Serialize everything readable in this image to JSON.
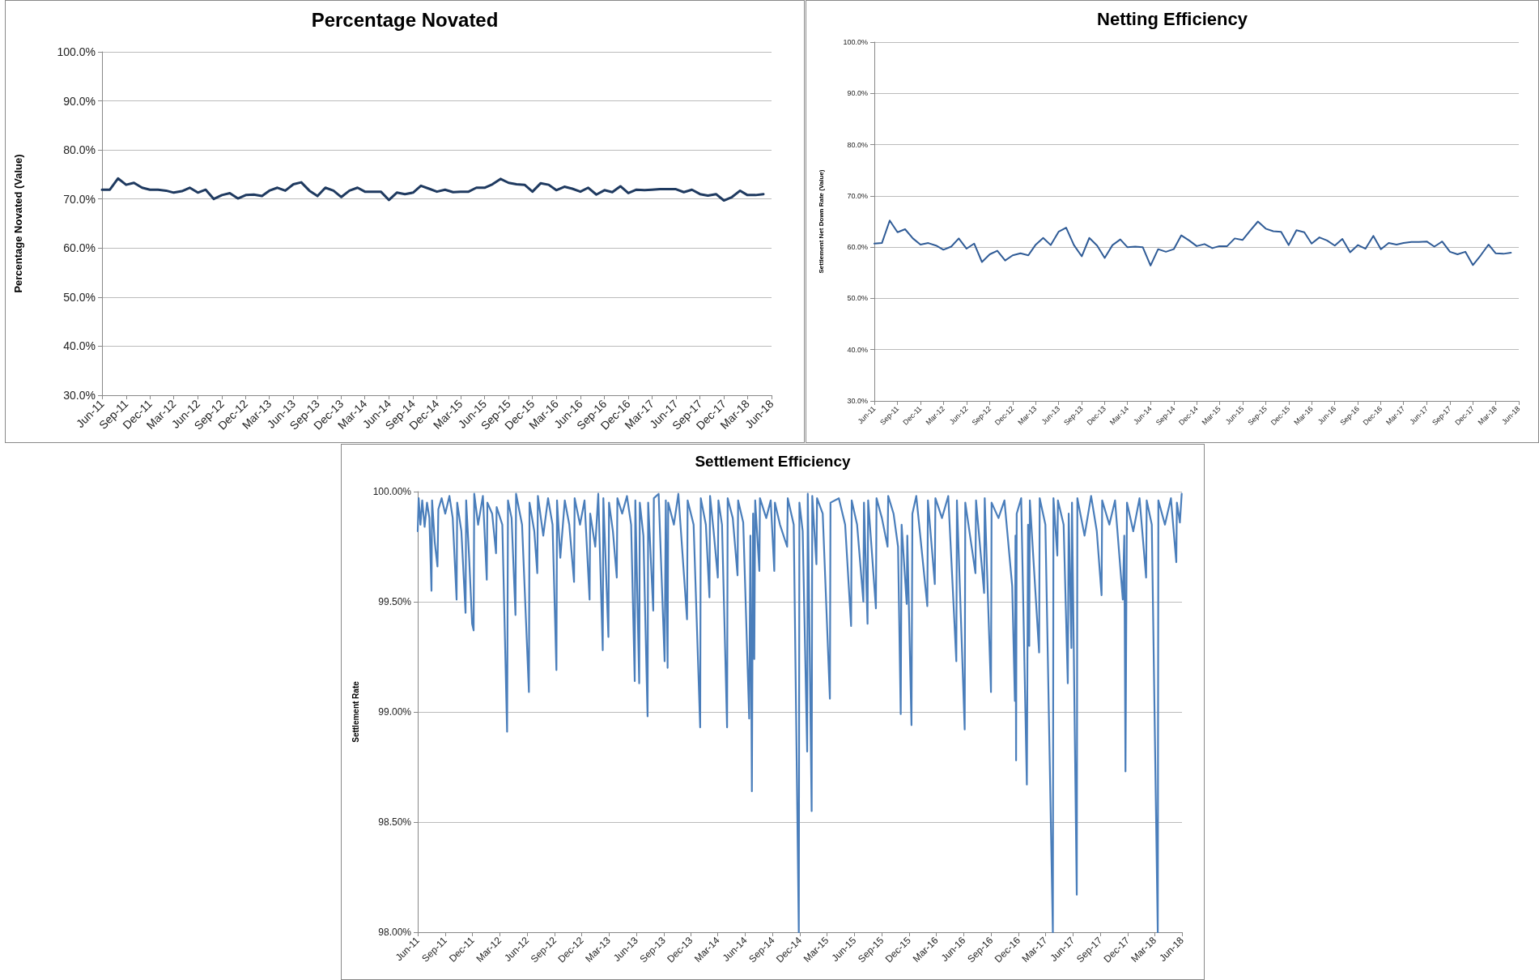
{
  "chart_data": [
    {
      "type": "line",
      "title": "Percentage Novated",
      "ylabel": "Percentage Novated (Value)",
      "color": "#1f3a60",
      "grid": "y",
      "x": [
        "2011-06",
        "2011-07",
        "2011-08",
        "2011-09",
        "2011-10",
        "2011-11",
        "2011-12",
        "2012-01",
        "2012-02",
        "2012-03",
        "2012-04",
        "2012-05",
        "2012-06",
        "2012-07",
        "2012-08",
        "2012-09",
        "2012-10",
        "2012-11",
        "2012-12",
        "2013-01",
        "2013-02",
        "2013-03",
        "2013-04",
        "2013-05",
        "2013-06",
        "2013-07",
        "2013-08",
        "2013-09",
        "2013-10",
        "2013-11",
        "2013-12",
        "2014-01",
        "2014-02",
        "2014-03",
        "2014-04",
        "2014-05",
        "2014-06",
        "2014-07",
        "2014-08",
        "2014-09",
        "2014-10",
        "2014-11",
        "2014-12",
        "2015-01",
        "2015-02",
        "2015-03",
        "2015-04",
        "2015-05",
        "2015-06",
        "2015-07",
        "2015-08",
        "2015-09",
        "2015-10",
        "2015-11",
        "2015-12",
        "2016-01",
        "2016-02",
        "2016-03",
        "2016-04",
        "2016-05",
        "2016-06",
        "2016-07",
        "2016-08",
        "2016-09",
        "2016-10",
        "2016-11",
        "2016-12",
        "2017-01",
        "2017-02",
        "2017-03",
        "2017-04",
        "2017-05",
        "2017-06",
        "2017-07",
        "2017-08",
        "2017-09",
        "2017-10",
        "2017-11",
        "2017-12",
        "2018-01",
        "2018-02",
        "2018-03",
        "2018-04",
        "2018-05"
      ],
      "values": [
        71.9,
        71.9,
        74.2,
        72.9,
        73.3,
        72.3,
        71.9,
        71.9,
        71.7,
        71.3,
        71.6,
        72.3,
        71.3,
        71.9,
        70.0,
        70.8,
        71.2,
        70.1,
        70.8,
        70.9,
        70.6,
        71.7,
        72.3,
        71.7,
        73.0,
        73.4,
        71.7,
        70.6,
        72.3,
        71.7,
        70.4,
        71.7,
        72.3,
        71.5,
        71.5,
        71.5,
        69.8,
        71.3,
        71.0,
        71.3,
        72.7,
        72.1,
        71.5,
        71.9,
        71.4,
        71.5,
        71.5,
        72.3,
        72.3,
        73.0,
        74.1,
        73.3,
        73.0,
        72.9,
        71.5,
        73.2,
        72.9,
        71.8,
        72.5,
        72.1,
        71.5,
        72.3,
        70.9,
        71.8,
        71.4,
        72.6,
        71.2,
        71.9,
        71.8,
        71.9,
        72.0,
        72.0,
        72.0,
        71.4,
        71.9,
        71.0,
        70.7,
        71.0,
        69.7,
        70.4,
        71.7,
        70.8,
        70.8,
        71.0
      ],
      "xlim": [
        "2011-06",
        "2018-06"
      ],
      "xticks": [
        {
          "value": "2011-06",
          "label": "Jun-11"
        },
        {
          "value": "2011-09",
          "label": "Sep-11"
        },
        {
          "value": "2011-12",
          "label": "Dec-11"
        },
        {
          "value": "2012-03",
          "label": "Mar-12"
        },
        {
          "value": "2012-06",
          "label": "Jun-12"
        },
        {
          "value": "2012-09",
          "label": "Sep-12"
        },
        {
          "value": "2012-12",
          "label": "Dec-12"
        },
        {
          "value": "2013-03",
          "label": "Mar-13"
        },
        {
          "value": "2013-06",
          "label": "Jun-13"
        },
        {
          "value": "2013-09",
          "label": "Sep-13"
        },
        {
          "value": "2013-12",
          "label": "Dec-13"
        },
        {
          "value": "2014-03",
          "label": "Mar-14"
        },
        {
          "value": "2014-06",
          "label": "Jun-14"
        },
        {
          "value": "2014-09",
          "label": "Sep-14"
        },
        {
          "value": "2014-12",
          "label": "Dec-14"
        },
        {
          "value": "2015-03",
          "label": "Mar-15"
        },
        {
          "value": "2015-06",
          "label": "Jun-15"
        },
        {
          "value": "2015-09",
          "label": "Sep-15"
        },
        {
          "value": "2015-12",
          "label": "Dec-15"
        },
        {
          "value": "2016-03",
          "label": "Mar-16"
        },
        {
          "value": "2016-06",
          "label": "Jun-16"
        },
        {
          "value": "2016-09",
          "label": "Sep-16"
        },
        {
          "value": "2016-12",
          "label": "Dec-16"
        },
        {
          "value": "2017-03",
          "label": "Mar-17"
        },
        {
          "value": "2017-06",
          "label": "Jun-17"
        },
        {
          "value": "2017-09",
          "label": "Sep-17"
        },
        {
          "value": "2017-12",
          "label": "Dec-17"
        },
        {
          "value": "2018-03",
          "label": "Mar-18"
        },
        {
          "value": "2018-06",
          "label": "Jun-18"
        }
      ],
      "ylim": [
        30,
        100
      ],
      "yticks": [
        {
          "value": 30,
          "label": "30.0%"
        },
        {
          "value": 40,
          "label": "40.0%"
        },
        {
          "value": 50,
          "label": "50.0%"
        },
        {
          "value": 60,
          "label": "60.0%"
        },
        {
          "value": 70,
          "label": "70.0%"
        },
        {
          "value": 80,
          "label": "80.0%"
        },
        {
          "value": 90,
          "label": "90.0%"
        },
        {
          "value": 100,
          "label": "100.0%"
        }
      ]
    },
    {
      "type": "line",
      "title": "Netting Efficiency",
      "ylabel": "Settlement Net Down Rate (Value)",
      "color": "#2f5b96",
      "grid": "y",
      "x": [
        "2011-06",
        "2011-07",
        "2011-08",
        "2011-09",
        "2011-10",
        "2011-11",
        "2011-12",
        "2012-01",
        "2012-02",
        "2012-03",
        "2012-04",
        "2012-05",
        "2012-06",
        "2012-07",
        "2012-08",
        "2012-09",
        "2012-10",
        "2012-11",
        "2012-12",
        "2013-01",
        "2013-02",
        "2013-03",
        "2013-04",
        "2013-05",
        "2013-06",
        "2013-07",
        "2013-08",
        "2013-09",
        "2013-10",
        "2013-11",
        "2013-12",
        "2014-01",
        "2014-02",
        "2014-03",
        "2014-04",
        "2014-05",
        "2014-06",
        "2014-07",
        "2014-08",
        "2014-09",
        "2014-10",
        "2014-11",
        "2014-12",
        "2015-01",
        "2015-02",
        "2015-03",
        "2015-04",
        "2015-05",
        "2015-06",
        "2015-07",
        "2015-08",
        "2015-09",
        "2015-10",
        "2015-11",
        "2015-12",
        "2016-01",
        "2016-02",
        "2016-03",
        "2016-04",
        "2016-05",
        "2016-06",
        "2016-07",
        "2016-08",
        "2016-09",
        "2016-10",
        "2016-11",
        "2016-12",
        "2017-01",
        "2017-02",
        "2017-03",
        "2017-04",
        "2017-05",
        "2017-06",
        "2017-07",
        "2017-08",
        "2017-09",
        "2017-10",
        "2017-11",
        "2017-12",
        "2018-01",
        "2018-02",
        "2018-03",
        "2018-04",
        "2018-05"
      ],
      "values": [
        60.7,
        60.8,
        65.2,
        62.9,
        63.5,
        61.7,
        60.5,
        60.8,
        60.3,
        59.5,
        60.1,
        61.7,
        59.7,
        60.7,
        57.1,
        58.6,
        59.3,
        57.4,
        58.4,
        58.8,
        58.4,
        60.4,
        61.8,
        60.4,
        63.0,
        63.8,
        60.4,
        58.2,
        61.8,
        60.3,
        57.9,
        60.4,
        61.5,
        60.0,
        60.1,
        60.0,
        56.4,
        59.6,
        59.1,
        59.6,
        62.3,
        61.3,
        60.2,
        60.6,
        59.8,
        60.2,
        60.2,
        61.7,
        61.4,
        63.2,
        65.0,
        63.6,
        63.1,
        63.0,
        60.4,
        63.3,
        62.9,
        60.7,
        61.9,
        61.3,
        60.3,
        61.6,
        59.0,
        60.4,
        59.7,
        62.2,
        59.6,
        60.8,
        60.5,
        60.8,
        61.0,
        61.0,
        61.1,
        60.1,
        61.1,
        59.1,
        58.6,
        59.1,
        56.5,
        58.4,
        60.5,
        58.8,
        58.7,
        58.9
      ],
      "xlim": [
        "2011-06",
        "2018-06"
      ],
      "xticks": [
        {
          "value": "2011-06",
          "label": "Jun-11"
        },
        {
          "value": "2011-09",
          "label": "Sep-11"
        },
        {
          "value": "2011-12",
          "label": "Dec-11"
        },
        {
          "value": "2012-03",
          "label": "Mar-12"
        },
        {
          "value": "2012-06",
          "label": "Jun-12"
        },
        {
          "value": "2012-09",
          "label": "Sep-12"
        },
        {
          "value": "2012-12",
          "label": "Dec-12"
        },
        {
          "value": "2013-03",
          "label": "Mar-13"
        },
        {
          "value": "2013-06",
          "label": "Jun-13"
        },
        {
          "value": "2013-09",
          "label": "Sep-13"
        },
        {
          "value": "2013-12",
          "label": "Dec-13"
        },
        {
          "value": "2014-03",
          "label": "Mar-14"
        },
        {
          "value": "2014-06",
          "label": "Jun-14"
        },
        {
          "value": "2014-09",
          "label": "Sep-14"
        },
        {
          "value": "2014-12",
          "label": "Dec-14"
        },
        {
          "value": "2015-03",
          "label": "Mar-15"
        },
        {
          "value": "2015-06",
          "label": "Jun-15"
        },
        {
          "value": "2015-09",
          "label": "Sep-15"
        },
        {
          "value": "2015-12",
          "label": "Dec-15"
        },
        {
          "value": "2016-03",
          "label": "Mar-16"
        },
        {
          "value": "2016-06",
          "label": "Jun-16"
        },
        {
          "value": "2016-09",
          "label": "Sep-16"
        },
        {
          "value": "2016-12",
          "label": "Dec-16"
        },
        {
          "value": "2017-03",
          "label": "Mar-17"
        },
        {
          "value": "2017-06",
          "label": "Jun-17"
        },
        {
          "value": "2017-09",
          "label": "Sep-17"
        },
        {
          "value": "2017-12",
          "label": "Dec-17"
        },
        {
          "value": "2018-03",
          "label": "Mar-18"
        },
        {
          "value": "2018-06",
          "label": "Jun-18"
        }
      ],
      "ylim": [
        30,
        100
      ],
      "yticks": [
        {
          "value": 30,
          "label": "30.0%"
        },
        {
          "value": 40,
          "label": "40.0%"
        },
        {
          "value": 50,
          "label": "50.0%"
        },
        {
          "value": 60,
          "label": "60.0%"
        },
        {
          "value": 70,
          "label": "70.0%"
        },
        {
          "value": 80,
          "label": "80.0%"
        },
        {
          "value": 90,
          "label": "90.0%"
        },
        {
          "value": 100,
          "label": "100.0%"
        }
      ]
    },
    {
      "type": "line",
      "title": "Settlement Efficiency",
      "ylabel": "Settlement Rate",
      "color": "#4a7ebb",
      "grid": "y",
      "x": [
        "2011-06-01",
        "2011-06-04",
        "2011-06-10",
        "2011-06-16",
        "2011-06-24",
        "2011-07-02",
        "2011-07-10",
        "2011-07-17",
        "2011-07-19",
        "2011-07-28",
        "2011-08-06",
        "2011-08-09",
        "2011-08-20",
        "2011-09-01",
        "2011-09-15",
        "2011-09-26",
        "2011-10-09",
        "2011-10-11",
        "2011-10-25",
        "2011-11-08",
        "2011-11-10",
        "2011-11-20",
        "2011-11-30",
        "2011-12-05",
        "2011-12-07",
        "2011-12-20",
        "2012-01-05",
        "2012-01-18",
        "2012-01-20",
        "2012-02-05",
        "2012-02-18",
        "2012-02-20",
        "2012-03-10",
        "2012-03-26",
        "2012-03-29",
        "2012-04-10",
        "2012-04-23",
        "2012-04-25",
        "2012-05-15",
        "2012-06-07",
        "2012-06-09",
        "2012-06-25",
        "2012-07-05",
        "2012-07-07",
        "2012-07-25",
        "2012-08-10",
        "2012-08-25",
        "2012-09-07",
        "2012-09-09",
        "2012-09-20",
        "2012-10-05",
        "2012-10-20",
        "2012-11-05",
        "2012-11-07",
        "2012-11-25",
        "2012-12-10",
        "2012-12-27",
        "2012-12-29",
        "2013-01-15",
        "2013-01-25",
        "2013-02-09",
        "2013-02-11",
        "2013-02-28",
        "2013-03-02",
        "2013-03-15",
        "2013-03-28",
        "2013-03-30",
        "2013-04-15",
        "2013-05-01",
        "2013-05-15",
        "2013-05-27",
        "2013-05-29",
        "2013-06-11",
        "2013-06-13",
        "2013-06-25",
        "2013-07-09",
        "2013-07-11",
        "2013-07-28",
        "2013-07-30",
        "2013-08-15",
        "2013-09-04",
        "2013-09-08",
        "2013-09-14",
        "2013-09-16",
        "2013-10-05",
        "2013-10-20",
        "2013-11-18",
        "2013-11-20",
        "2013-12-10",
        "2014-01-01",
        "2014-01-03",
        "2014-01-20",
        "2014-02-01",
        "2014-02-03",
        "2014-02-15",
        "2014-03-01",
        "2014-03-03",
        "2014-03-15",
        "2014-04-01",
        "2014-04-03",
        "2014-04-20",
        "2014-05-06",
        "2014-05-08",
        "2014-05-25",
        "2014-06-14",
        "2014-06-18",
        "2014-06-23",
        "2014-06-27",
        "2014-07-01",
        "2014-07-04",
        "2014-07-18",
        "2014-07-20",
        "2014-08-10",
        "2014-08-25",
        "2014-09-06",
        "2014-09-08",
        "2014-09-25",
        "2014-10-19",
        "2014-10-21",
        "2014-11-10",
        "2014-11-27",
        "2014-11-29",
        "2014-12-10",
        "2014-12-25",
        "2014-12-27",
        "2015-01-09",
        "2015-01-11",
        "2015-01-25",
        "2015-01-27",
        "2015-02-15",
        "2015-03-11",
        "2015-03-13",
        "2015-04-10",
        "2015-05-01",
        "2015-05-21",
        "2015-05-23",
        "2015-06-10",
        "2015-07-01",
        "2015-07-03",
        "2015-07-15",
        "2015-07-17",
        "2015-08-12",
        "2015-08-14",
        "2015-09-01",
        "2015-09-20",
        "2015-09-22",
        "2015-10-10",
        "2015-10-25",
        "2015-11-03",
        "2015-11-06",
        "2015-11-23",
        "2015-11-25",
        "2015-12-09",
        "2015-12-12",
        "2015-12-25",
        "2016-01-31",
        "2016-02-02",
        "2016-02-25",
        "2016-02-27",
        "2016-03-20",
        "2016-04-10",
        "2016-05-07",
        "2016-05-09",
        "2016-06-04",
        "2016-06-06",
        "2016-07-10",
        "2016-07-12",
        "2016-08-08",
        "2016-08-10",
        "2016-08-31",
        "2016-09-02",
        "2016-09-25",
        "2016-10-15",
        "2016-11-10",
        "2016-11-19",
        "2016-11-21",
        "2016-11-23",
        "2016-11-25",
        "2016-12-10",
        "2016-12-29",
        "2017-01-02",
        "2017-01-06",
        "2017-01-08",
        "2017-02-08",
        "2017-02-10",
        "2017-03-01",
        "2017-03-26",
        "2017-03-28",
        "2017-04-10",
        "2017-04-12",
        "2017-05-01",
        "2017-05-15",
        "2017-05-18",
        "2017-05-27",
        "2017-05-29",
        "2017-06-14",
        "2017-06-16",
        "2017-07-10",
        "2017-08-01",
        "2017-08-20",
        "2017-09-05",
        "2017-09-07",
        "2017-10-01",
        "2017-10-20",
        "2017-11-15",
        "2017-11-20",
        "2017-11-24",
        "2017-11-27",
        "2017-11-29",
        "2017-12-20",
        "2018-01-10",
        "2018-02-01",
        "2018-02-03",
        "2018-02-20",
        "2018-03-12",
        "2018-03-14",
        "2018-04-05",
        "2018-04-25",
        "2018-05-13",
        "2018-05-15",
        "2018-05-25",
        "2018-05-31"
      ],
      "values": [
        99.82,
        99.97,
        99.85,
        99.96,
        99.84,
        99.95,
        99.88,
        99.55,
        99.96,
        99.77,
        99.66,
        99.92,
        99.97,
        99.9,
        99.98,
        99.88,
        99.51,
        99.95,
        99.82,
        99.45,
        99.96,
        99.7,
        99.4,
        99.37,
        99.99,
        99.85,
        99.98,
        99.6,
        99.95,
        99.9,
        99.72,
        99.93,
        99.85,
        98.91,
        99.96,
        99.88,
        99.44,
        99.99,
        99.85,
        99.09,
        99.95,
        99.82,
        99.63,
        99.98,
        99.8,
        99.97,
        99.85,
        99.19,
        99.96,
        99.7,
        99.96,
        99.85,
        99.59,
        99.97,
        99.85,
        99.96,
        99.51,
        99.9,
        99.75,
        99.99,
        99.28,
        99.97,
        99.34,
        99.95,
        99.82,
        99.61,
        99.97,
        99.9,
        99.98,
        99.85,
        99.14,
        99.96,
        99.13,
        99.95,
        99.8,
        98.98,
        99.95,
        99.46,
        99.97,
        99.99,
        99.23,
        99.96,
        99.2,
        99.95,
        99.85,
        99.99,
        99.42,
        99.96,
        99.85,
        98.93,
        99.97,
        99.85,
        99.52,
        99.98,
        99.82,
        99.61,
        99.96,
        99.85,
        98.93,
        99.97,
        99.88,
        99.62,
        99.96,
        99.86,
        98.97,
        99.8,
        98.64,
        99.9,
        99.24,
        99.96,
        99.64,
        99.97,
        99.88,
        99.96,
        99.64,
        99.95,
        99.85,
        99.75,
        99.97,
        99.85,
        98.0,
        99.95,
        99.82,
        98.82,
        99.99,
        98.55,
        99.98,
        99.67,
        99.97,
        99.9,
        99.06,
        99.95,
        99.97,
        99.85,
        99.39,
        99.96,
        99.85,
        99.5,
        99.95,
        99.4,
        99.96,
        99.47,
        99.97,
        99.88,
        99.75,
        99.98,
        99.9,
        99.75,
        98.99,
        99.85,
        99.49,
        99.8,
        98.94,
        99.9,
        99.98,
        99.48,
        99.96,
        99.58,
        99.97,
        99.88,
        99.98,
        99.23,
        99.96,
        98.92,
        99.95,
        99.63,
        99.96,
        99.54,
        99.97,
        99.09,
        99.95,
        99.88,
        99.96,
        99.57,
        99.05,
        99.8,
        98.78,
        99.9,
        99.97,
        98.67,
        99.85,
        99.3,
        99.96,
        99.27,
        99.97,
        99.85,
        98.0,
        99.97,
        99.71,
        99.96,
        99.85,
        99.13,
        99.9,
        99.29,
        99.95,
        98.17,
        99.97,
        99.8,
        99.98,
        99.82,
        99.53,
        99.96,
        99.85,
        99.96,
        99.51,
        99.8,
        98.73,
        99.52,
        99.95,
        99.82,
        99.97,
        99.61,
        99.96,
        99.85,
        98.0,
        99.96,
        99.85,
        99.97,
        99.68,
        99.95,
        99.86,
        99.99
      ],
      "xlim": [
        "2011-06",
        "2018-06"
      ],
      "xticks": [
        {
          "value": "2011-06",
          "label": "Jun-11"
        },
        {
          "value": "2011-09",
          "label": "Sep-11"
        },
        {
          "value": "2011-12",
          "label": "Dec-11"
        },
        {
          "value": "2012-03",
          "label": "Mar-12"
        },
        {
          "value": "2012-06",
          "label": "Jun-12"
        },
        {
          "value": "2012-09",
          "label": "Sep-12"
        },
        {
          "value": "2012-12",
          "label": "Dec-12"
        },
        {
          "value": "2013-03",
          "label": "Mar-13"
        },
        {
          "value": "2013-06",
          "label": "Jun-13"
        },
        {
          "value": "2013-09",
          "label": "Sep-13"
        },
        {
          "value": "2013-12",
          "label": "Dec-13"
        },
        {
          "value": "2014-03",
          "label": "Mar-14"
        },
        {
          "value": "2014-06",
          "label": "Jun-14"
        },
        {
          "value": "2014-09",
          "label": "Sep-14"
        },
        {
          "value": "2014-12",
          "label": "Dec-14"
        },
        {
          "value": "2015-03",
          "label": "Mar-15"
        },
        {
          "value": "2015-06",
          "label": "Jun-15"
        },
        {
          "value": "2015-09",
          "label": "Sep-15"
        },
        {
          "value": "2015-12",
          "label": "Dec-15"
        },
        {
          "value": "2016-03",
          "label": "Mar-16"
        },
        {
          "value": "2016-06",
          "label": "Jun-16"
        },
        {
          "value": "2016-09",
          "label": "Sep-16"
        },
        {
          "value": "2016-12",
          "label": "Dec-16"
        },
        {
          "value": "2017-03",
          "label": "Mar-17"
        },
        {
          "value": "2017-06",
          "label": "Jun-17"
        },
        {
          "value": "2017-09",
          "label": "Sep-17"
        },
        {
          "value": "2017-12",
          "label": "Dec-17"
        },
        {
          "value": "2018-03",
          "label": "Mar-18"
        },
        {
          "value": "2018-06",
          "label": "Jun-18"
        }
      ],
      "ylim": [
        98,
        100
      ],
      "yticks": [
        {
          "value": 98,
          "label": "98.00%"
        },
        {
          "value": 98.5,
          "label": "98.50%"
        },
        {
          "value": 99,
          "label": "99.00%"
        },
        {
          "value": 99.5,
          "label": "99.50%"
        },
        {
          "value": 100,
          "label": "100.00%"
        }
      ]
    }
  ]
}
